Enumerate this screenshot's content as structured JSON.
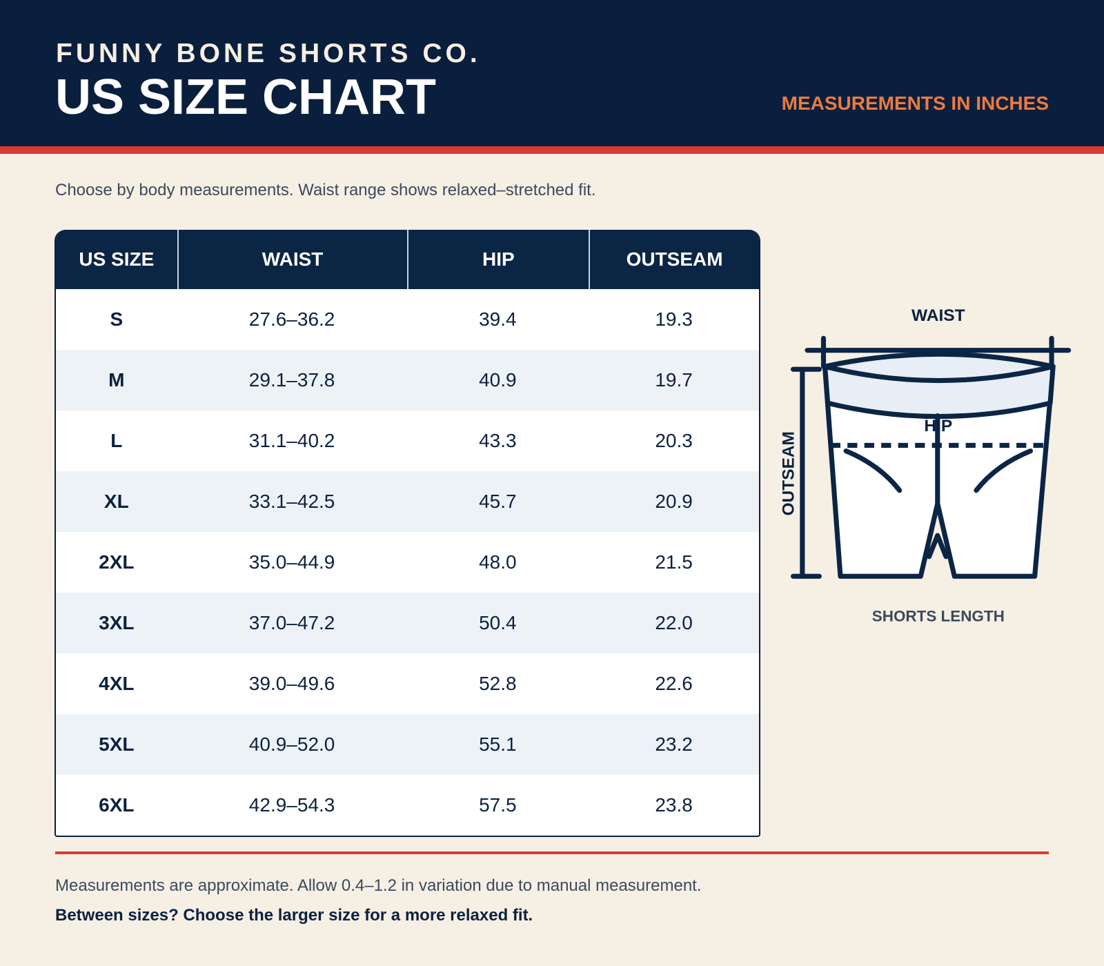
{
  "header": {
    "brand": "FUNNY BONE SHORTS CO.",
    "title": "US SIZE CHART",
    "units": "MEASUREMENTS IN INCHES"
  },
  "intro": "Choose by body measurements. Waist range shows relaxed–stretched fit.",
  "table": {
    "columns": [
      "US SIZE",
      "WAIST",
      "HIP",
      "OUTSEAM"
    ],
    "rows": [
      [
        "S",
        "27.6–36.2",
        "39.4",
        "19.3"
      ],
      [
        "M",
        "29.1–37.8",
        "40.9",
        "19.7"
      ],
      [
        "L",
        "31.1–40.2",
        "43.3",
        "20.3"
      ],
      [
        "XL",
        "33.1–42.5",
        "45.7",
        "20.9"
      ],
      [
        "2XL",
        "35.0–44.9",
        "48.0",
        "21.5"
      ],
      [
        "3XL",
        "37.0–47.2",
        "50.4",
        "22.0"
      ],
      [
        "4XL",
        "39.0–49.6",
        "52.8",
        "22.6"
      ],
      [
        "5XL",
        "40.9–52.0",
        "55.1",
        "23.2"
      ],
      [
        "6XL",
        "42.9–54.3",
        "57.5",
        "23.8"
      ]
    ]
  },
  "diagram": {
    "waist": "WAIST",
    "hip": "HIP",
    "outseam": "OUTSEAM",
    "caption": "SHORTS LENGTH"
  },
  "footer": {
    "note": "Measurements are approximate. Allow 0.4–1.2 in variation due to manual measurement.",
    "tip": "Between sizes? Choose the larger size for a more relaxed fit."
  }
}
